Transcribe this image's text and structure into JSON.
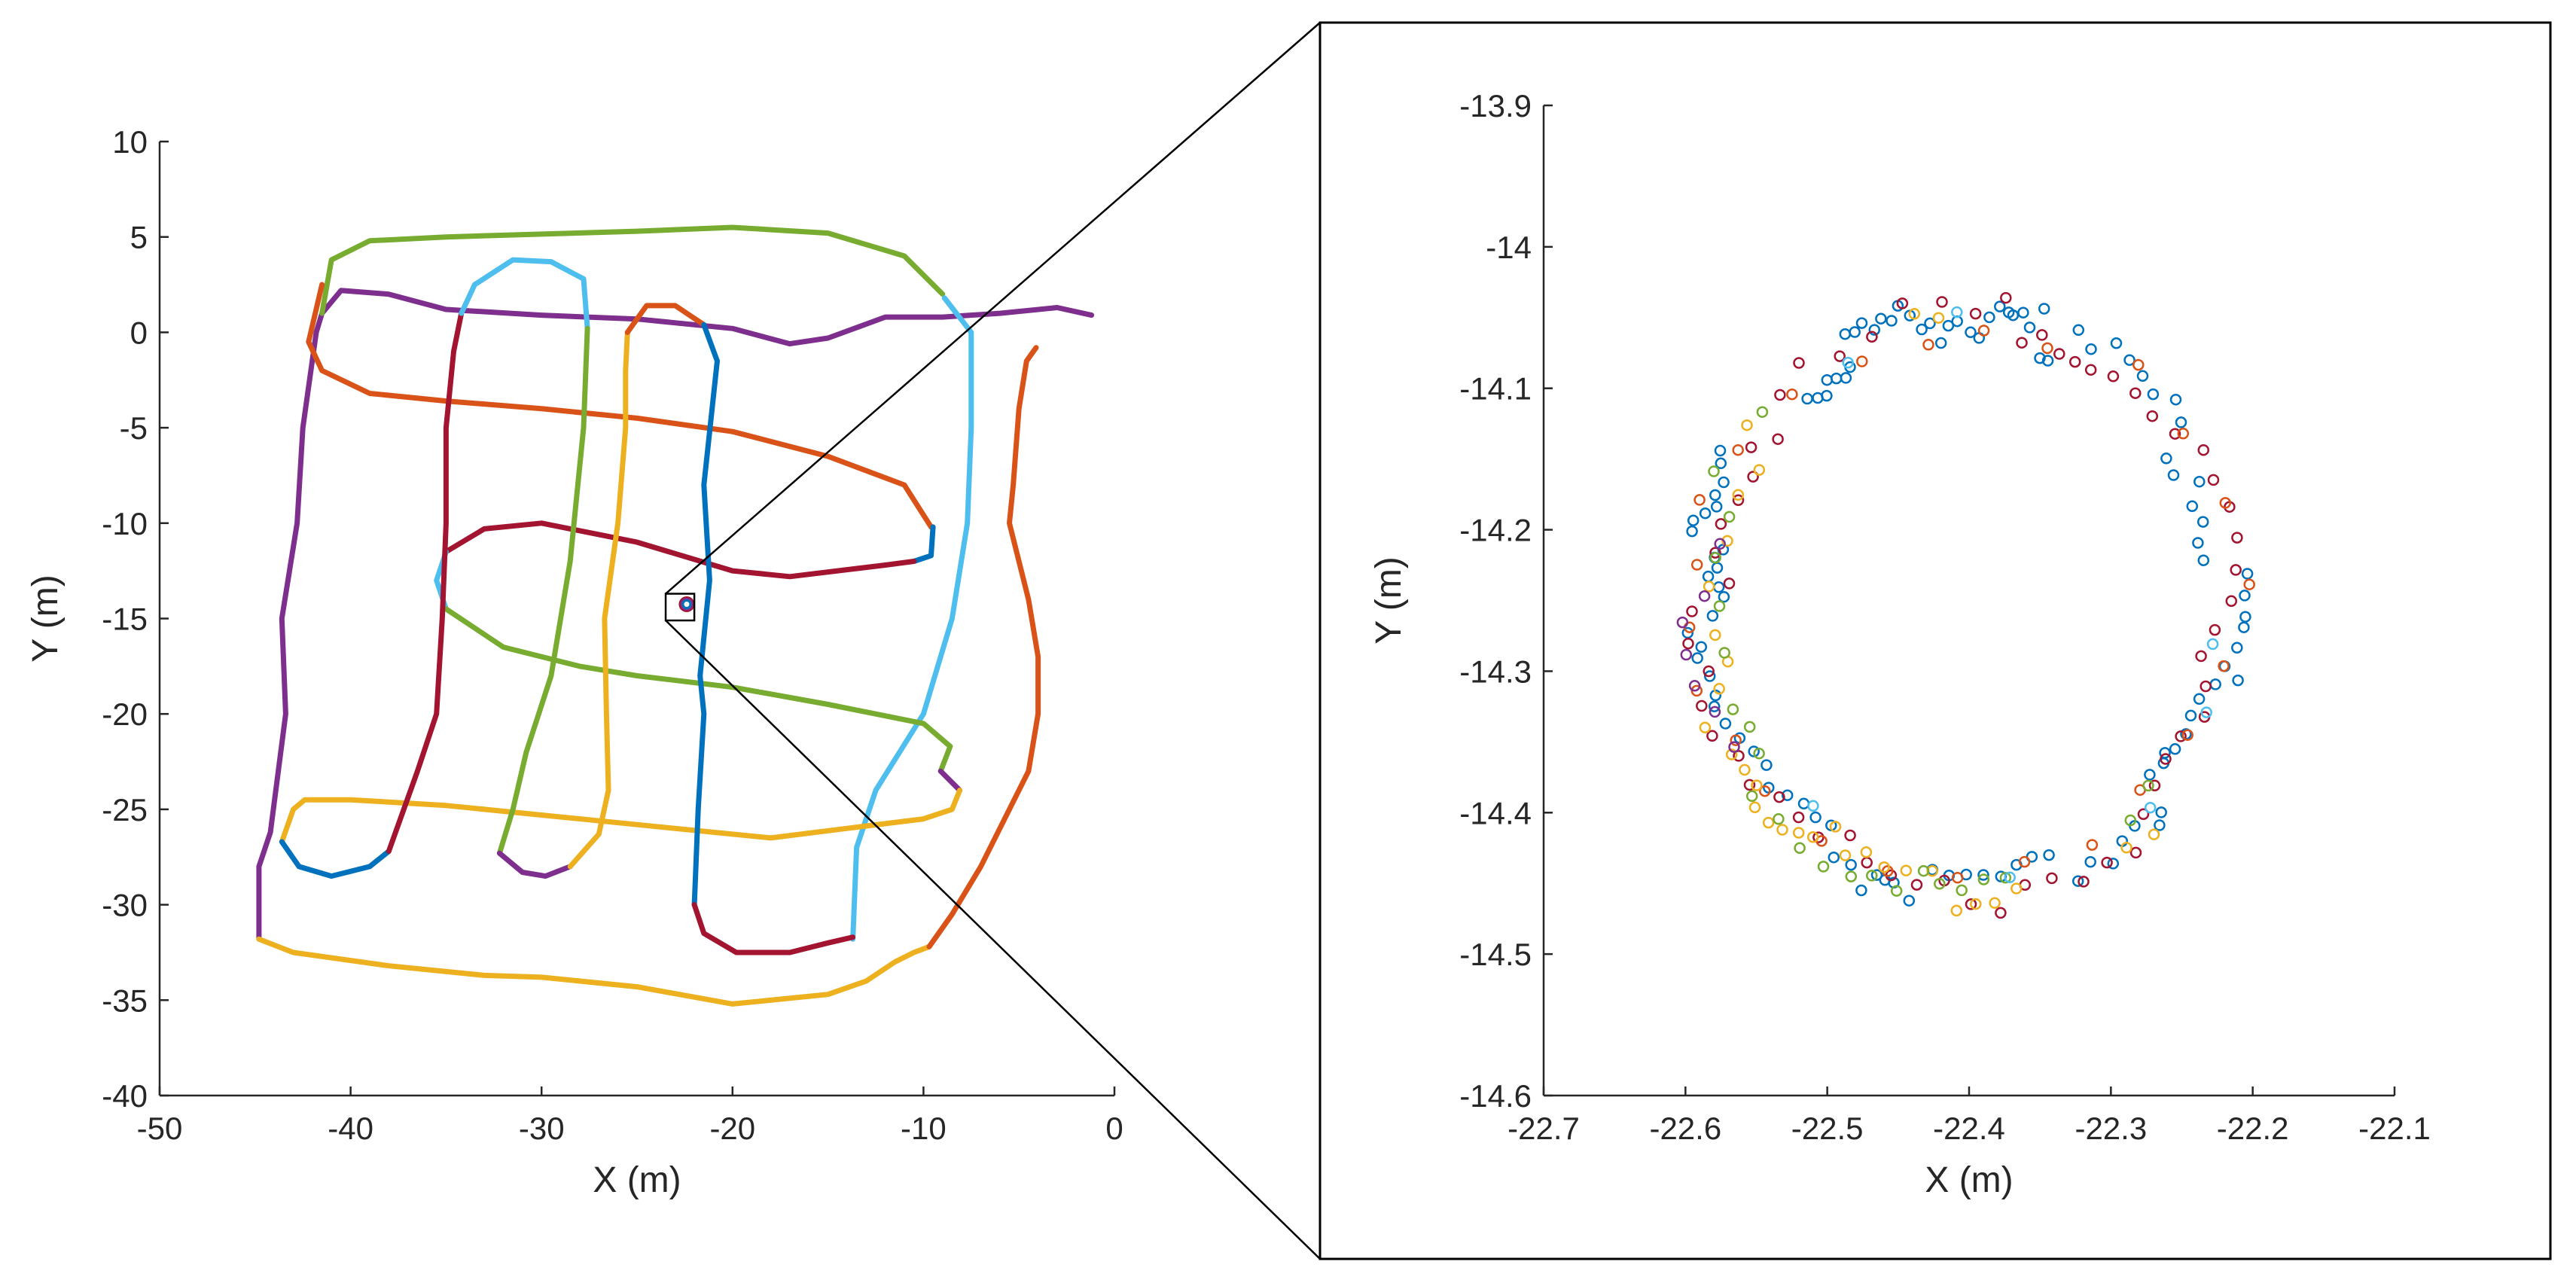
{
  "chart_data": [
    {
      "id": "overview",
      "type": "line",
      "xlabel": "X (m)",
      "ylabel": "Y (m)",
      "xlim": [
        -50,
        0
      ],
      "ylim": [
        -40,
        10
      ],
      "xticks": [
        "-50",
        "-40",
        "-30",
        "-20",
        "-10",
        "0"
      ],
      "yticks": [
        "10",
        "5",
        "0",
        "-5",
        "-10",
        "-15",
        "-20",
        "-25",
        "-30",
        "-35",
        "-40"
      ],
      "grid": false,
      "zoom_box": {
        "x": [
          -23.5,
          -22.0
        ],
        "y": [
          -15.1,
          -13.7
        ]
      },
      "series": [
        {
          "color": "#7e2f8e",
          "points": [
            [
              -44.8,
              -31.8
            ],
            [
              -44.8,
              -28
            ],
            [
              -44.2,
              -26.2
            ],
            [
              -43.4,
              -20
            ],
            [
              -43.6,
              -15
            ],
            [
              -42.8,
              -10
            ],
            [
              -42.5,
              -5
            ],
            [
              -41.8,
              0
            ],
            [
              -41.5,
              1
            ],
            [
              -40.5,
              2.2
            ],
            [
              -38,
              2
            ],
            [
              -35,
              1.2
            ],
            [
              -30,
              0.9
            ],
            [
              -25,
              0.7
            ],
            [
              -20,
              0.2
            ],
            [
              -17,
              -0.6
            ],
            [
              -15,
              -0.3
            ],
            [
              -12,
              0.8
            ],
            [
              -9,
              0.8
            ],
            [
              -6,
              1
            ],
            [
              -3,
              1.3
            ],
            [
              -1.2,
              0.9
            ]
          ]
        },
        {
          "color": "#77ac30",
          "points": [
            [
              -41.5,
              1
            ],
            [
              -41,
              3.8
            ],
            [
              -39,
              4.8
            ],
            [
              -35,
              5
            ],
            [
              -25,
              5.3
            ],
            [
              -20,
              5.5
            ],
            [
              -15,
              5.2
            ],
            [
              -11,
              4
            ],
            [
              -9,
              2
            ]
          ]
        },
        {
          "color": "#4dbeee",
          "points": [
            [
              -8.9,
              1.8
            ],
            [
              -7.5,
              0
            ],
            [
              -7.5,
              -5
            ],
            [
              -7.7,
              -10
            ],
            [
              -8.5,
              -15
            ],
            [
              -10,
              -20
            ],
            [
              -12.5,
              -24
            ],
            [
              -13.5,
              -27
            ],
            [
              -13.7,
              -31.8
            ]
          ]
        },
        {
          "color": "#d95319",
          "points": [
            [
              -41.5,
              2.5
            ],
            [
              -42.2,
              -0.5
            ],
            [
              -41.5,
              -2
            ],
            [
              -39,
              -3.2
            ],
            [
              -35,
              -3.6
            ],
            [
              -30,
              -4
            ],
            [
              -25,
              -4.5
            ],
            [
              -20,
              -5.2
            ],
            [
              -15,
              -6.5
            ],
            [
              -11,
              -8
            ],
            [
              -9.6,
              -10.2
            ]
          ]
        },
        {
          "color": "#0072bd",
          "points": [
            [
              -9.5,
              -10.2
            ],
            [
              -9.6,
              -11.7
            ],
            [
              -10.5,
              -12
            ]
          ]
        },
        {
          "color": "#a2142f",
          "points": [
            [
              -10.5,
              -12
            ],
            [
              -12,
              -12.2
            ],
            [
              -17,
              -12.8
            ],
            [
              -20,
              -12.5
            ],
            [
              -25,
              -11
            ],
            [
              -30,
              -10
            ],
            [
              -33,
              -10.3
            ],
            [
              -35,
              -11.5
            ]
          ]
        },
        {
          "color": "#4dbeee",
          "points": [
            [
              -35,
              -11.5
            ],
            [
              -35.5,
              -13
            ],
            [
              -35,
              -14.5
            ]
          ]
        },
        {
          "color": "#77ac30",
          "points": [
            [
              -35,
              -14.5
            ],
            [
              -32,
              -16.5
            ],
            [
              -28,
              -17.5
            ],
            [
              -25,
              -18
            ],
            [
              -20,
              -18.6
            ],
            [
              -15,
              -19.5
            ],
            [
              -10,
              -20.5
            ],
            [
              -8.6,
              -21.7
            ],
            [
              -9.1,
              -23
            ]
          ]
        },
        {
          "color": "#7e2f8e",
          "points": [
            [
              -9.1,
              -23
            ],
            [
              -8.1,
              -24
            ]
          ]
        },
        {
          "color": "#edb120",
          "points": [
            [
              -8.1,
              -24
            ],
            [
              -8.5,
              -25
            ],
            [
              -10,
              -25.5
            ],
            [
              -14,
              -26
            ],
            [
              -18,
              -26.5
            ],
            [
              -25,
              -25.8
            ],
            [
              -30,
              -25.3
            ],
            [
              -35,
              -24.8
            ],
            [
              -40,
              -24.5
            ],
            [
              -42.4,
              -24.5
            ],
            [
              -43,
              -25
            ],
            [
              -43.6,
              -26.7
            ]
          ]
        },
        {
          "color": "#0072bd",
          "points": [
            [
              -43.6,
              -26.7
            ],
            [
              -42.7,
              -28
            ],
            [
              -41,
              -28.5
            ],
            [
              -39,
              -28
            ],
            [
              -38,
              -27.2
            ]
          ]
        },
        {
          "color": "#a2142f",
          "points": [
            [
              -38,
              -27.2
            ],
            [
              -36.5,
              -23
            ],
            [
              -35.5,
              -20
            ],
            [
              -35.2,
              -15
            ],
            [
              -35,
              -10
            ],
            [
              -35,
              -5
            ],
            [
              -34.6,
              -1
            ],
            [
              -34.2,
              1
            ]
          ]
        },
        {
          "color": "#4dbeee",
          "points": [
            [
              -34.2,
              1
            ],
            [
              -33.5,
              2.5
            ],
            [
              -31.5,
              3.8
            ],
            [
              -29.5,
              3.7
            ],
            [
              -27.8,
              2.8
            ],
            [
              -27.6,
              0.2
            ]
          ]
        },
        {
          "color": "#77ac30",
          "points": [
            [
              -27.6,
              0.2
            ],
            [
              -27.8,
              -5
            ],
            [
              -28.5,
              -12
            ],
            [
              -29.5,
              -18
            ],
            [
              -30.8,
              -22
            ],
            [
              -31.5,
              -25
            ],
            [
              -32.2,
              -27.3
            ]
          ]
        },
        {
          "color": "#7e2f8e",
          "points": [
            [
              -32.2,
              -27.3
            ],
            [
              -31,
              -28.3
            ],
            [
              -29.8,
              -28.5
            ],
            [
              -28.5,
              -28
            ]
          ]
        },
        {
          "color": "#edb120",
          "points": [
            [
              -28.5,
              -28
            ],
            [
              -27,
              -26.3
            ],
            [
              -26.5,
              -24
            ],
            [
              -26.6,
              -20
            ],
            [
              -26.7,
              -15
            ],
            [
              -26,
              -10
            ],
            [
              -25.6,
              -5
            ],
            [
              -25.6,
              -2
            ],
            [
              -25.5,
              0
            ]
          ]
        },
        {
          "color": "#d95319",
          "points": [
            [
              -25.5,
              0
            ],
            [
              -24.5,
              1.4
            ],
            [
              -23,
              1.4
            ],
            [
              -21.5,
              0.4
            ]
          ]
        },
        {
          "color": "#0072bd",
          "points": [
            [
              -21.5,
              0.4
            ],
            [
              -20.8,
              -1.5
            ],
            [
              -21.5,
              -8
            ],
            [
              -21.2,
              -13
            ],
            [
              -21.7,
              -18
            ],
            [
              -21.5,
              -20
            ],
            [
              -21.8,
              -25
            ],
            [
              -22,
              -30
            ]
          ]
        },
        {
          "color": "#a2142f",
          "points": [
            [
              -22,
              -30
            ],
            [
              -21.5,
              -31.5
            ],
            [
              -19.8,
              -32.5
            ],
            [
              -17,
              -32.5
            ],
            [
              -15,
              -32
            ],
            [
              -13.7,
              -31.7
            ]
          ]
        },
        {
          "color": "#edb120",
          "points": [
            [
              -44.8,
              -31.8
            ],
            [
              -43,
              -32.5
            ],
            [
              -38,
              -33.2
            ],
            [
              -33,
              -33.7
            ],
            [
              -30,
              -33.8
            ],
            [
              -25,
              -34.3
            ],
            [
              -20,
              -35.2
            ],
            [
              -15,
              -34.7
            ],
            [
              -13,
              -34
            ],
            [
              -11.5,
              -33
            ],
            [
              -10.5,
              -32.5
            ],
            [
              -9.7,
              -32.2
            ]
          ]
        },
        {
          "color": "#d95319",
          "points": [
            [
              -9.7,
              -32.2
            ],
            [
              -8.5,
              -30.5
            ],
            [
              -7,
              -28
            ],
            [
              -5.5,
              -25
            ],
            [
              -4.5,
              -23
            ],
            [
              -4,
              -20
            ],
            [
              -4,
              -17
            ],
            [
              -4.5,
              -14
            ],
            [
              -5.5,
              -10
            ],
            [
              -5.3,
              -8
            ],
            [
              -5,
              -4
            ],
            [
              -4.6,
              -1.5
            ],
            [
              -4.1,
              -0.8
            ]
          ]
        }
      ],
      "marker": {
        "x": -22.4,
        "y": -14.25,
        "colors": [
          "#a2142f",
          "#7e2f8e",
          "#0072bd"
        ]
      }
    },
    {
      "id": "zoom",
      "type": "scatter",
      "xlabel": "X (m)",
      "ylabel": "Y (m)",
      "xlim": [
        -22.7,
        -22.1
      ],
      "ylim": [
        -14.6,
        -13.9
      ],
      "xticks": [
        "-22.7",
        "-22.6",
        "-22.5",
        "-22.4",
        "-22.3",
        "-22.2",
        "-22.1"
      ],
      "yticks": [
        "-13.9",
        "-14",
        "-14.1",
        "-14.2",
        "-14.3",
        "-14.4",
        "-14.5",
        "-14.6"
      ],
      "grid": false,
      "ring": {
        "cx": -22.402,
        "cy": -14.254,
        "rx": 0.184,
        "ry": 0.202
      },
      "series": [
        {
          "color": "#0072bd",
          "angles_deg": [
            74,
            76,
            78,
            80,
            81,
            83,
            85,
            87,
            89,
            92,
            94,
            96,
            98,
            100,
            102,
            104,
            106,
            108,
            110,
            112,
            114,
            116,
            118,
            120,
            122,
            124,
            126,
            128,
            130,
            150,
            152,
            155,
            158,
            160,
            162,
            164,
            166,
            168,
            170,
            172,
            174,
            176,
            178,
            182,
            185,
            188,
            190,
            194,
            198,
            200,
            204,
            208,
            212,
            216,
            220,
            224,
            228,
            232,
            236,
            240,
            244,
            248,
            250,
            252,
            254,
            258,
            262,
            266,
            270,
            274,
            278,
            282,
            286,
            290,
            294,
            298,
            302,
            306,
            310,
            314,
            316,
            320,
            324,
            326,
            328,
            332,
            336,
            340,
            344,
            346,
            348,
            352,
            356,
            358,
            2,
            6,
            10,
            14,
            18,
            22,
            26,
            30,
            34,
            38,
            42,
            46,
            50,
            54,
            58,
            62,
            66,
            70,
            72
          ]
        },
        {
          "color": "#a2142f",
          "angles_deg": [
            60,
            64,
            68,
            73,
            77,
            82,
            88,
            95,
            103,
            111,
            119,
            127,
            134,
            141,
            146,
            151,
            157,
            163,
            169,
            175,
            181,
            187,
            193,
            199,
            205,
            211,
            217,
            223,
            229,
            235,
            241,
            247,
            253,
            259,
            265,
            271,
            277,
            283,
            289,
            295,
            301,
            307,
            313,
            319,
            325,
            331,
            337,
            343,
            349,
            355,
            1,
            7,
            13,
            19,
            25,
            31,
            37,
            43,
            49,
            55
          ]
        },
        {
          "color": "#d95319",
          "angles_deg": [
            71,
            86,
            99,
            115,
            132,
            148,
            160,
            172,
            184,
            196,
            208,
            220,
            236,
            252,
            268,
            284,
            300,
            316,
            332,
            348,
            4,
            20,
            36,
            52
          ]
        },
        {
          "color": "#edb120",
          "angles_deg": [
            96,
            101,
            143,
            149,
            156,
            166,
            176,
            186,
            192,
            197,
            203,
            210,
            214,
            218,
            221,
            225,
            228,
            231,
            234,
            237,
            242,
            246,
            251,
            256,
            262,
            268,
            272,
            276,
            281,
            306,
            312
          ]
        },
        {
          "color": "#77ac30",
          "angles_deg": [
            139,
            154,
            161,
            170,
            180,
            190,
            202,
            207,
            213,
            219,
            226,
            233,
            239,
            245,
            249,
            255,
            260,
            264,
            269,
            274,
            279,
            310,
            318
          ]
        },
        {
          "color": "#7e2f8e",
          "angles_deg": [
            167,
            178,
            183,
            189,
            195,
            201,
            209
          ]
        },
        {
          "color": "#4dbeee",
          "angles_deg": [
            92,
            118,
            230,
            280,
            315,
            338,
            352
          ]
        }
      ]
    }
  ]
}
